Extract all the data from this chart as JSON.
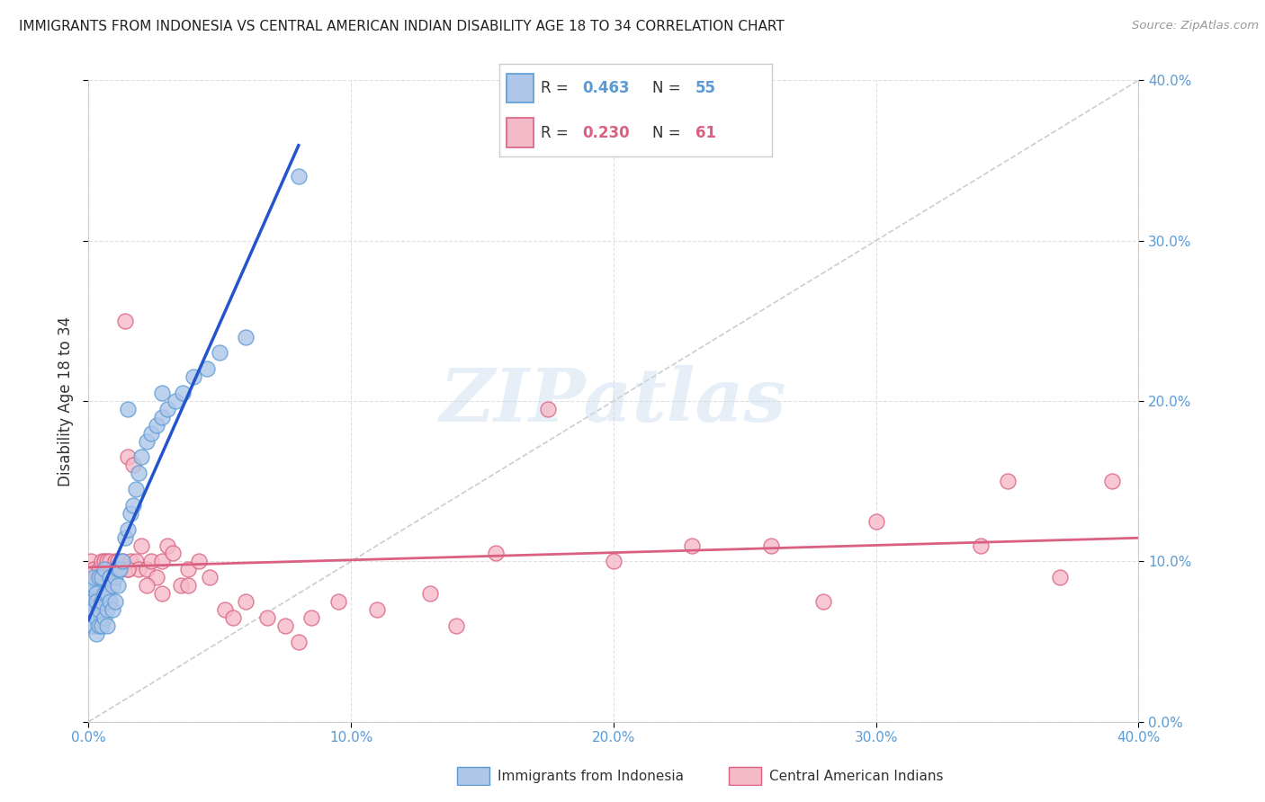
{
  "title": "IMMIGRANTS FROM INDONESIA VS CENTRAL AMERICAN INDIAN DISABILITY AGE 18 TO 34 CORRELATION CHART",
  "source": "Source: ZipAtlas.com",
  "ylabel": "Disability Age 18 to 34",
  "xlim": [
    0.0,
    0.4
  ],
  "ylim": [
    0.0,
    0.4
  ],
  "xticks": [
    0.0,
    0.1,
    0.2,
    0.3,
    0.4
  ],
  "yticks": [
    0.0,
    0.1,
    0.2,
    0.3,
    0.4
  ],
  "pct_labels": [
    "0.0%",
    "10.0%",
    "20.0%",
    "30.0%",
    "40.0%"
  ],
  "indonesia_fill": "#aec6e8",
  "indonesia_edge": "#5b9bd5",
  "central_fill": "#f5bac8",
  "central_edge": "#d96080",
  "trend_indonesia": "#2255cc",
  "trend_central": "#d96080",
  "diagonal_color": "#c0c0c0",
  "R_indonesia": 0.463,
  "N_indonesia": 55,
  "R_central": 0.23,
  "N_central": 61,
  "watermark": "ZIPatlas",
  "bg": "#ffffff",
  "grid_color": "#e0e0e0",
  "tick_color": "#5b9bd5",
  "title_color": "#222222",
  "indonesia_x": [
    0.0005,
    0.001,
    0.001,
    0.0015,
    0.002,
    0.002,
    0.002,
    0.002,
    0.003,
    0.003,
    0.003,
    0.003,
    0.004,
    0.004,
    0.004,
    0.005,
    0.005,
    0.005,
    0.006,
    0.006,
    0.006,
    0.007,
    0.007,
    0.007,
    0.008,
    0.008,
    0.009,
    0.009,
    0.01,
    0.01,
    0.011,
    0.011,
    0.012,
    0.013,
    0.014,
    0.015,
    0.016,
    0.017,
    0.018,
    0.019,
    0.02,
    0.022,
    0.024,
    0.026,
    0.028,
    0.03,
    0.033,
    0.036,
    0.04,
    0.045,
    0.05,
    0.06,
    0.08,
    0.015,
    0.028
  ],
  "indonesia_y": [
    0.08,
    0.075,
    0.065,
    0.06,
    0.085,
    0.07,
    0.06,
    0.09,
    0.08,
    0.065,
    0.075,
    0.055,
    0.09,
    0.07,
    0.06,
    0.09,
    0.075,
    0.06,
    0.08,
    0.065,
    0.095,
    0.08,
    0.07,
    0.06,
    0.09,
    0.075,
    0.085,
    0.07,
    0.09,
    0.075,
    0.095,
    0.085,
    0.095,
    0.1,
    0.115,
    0.12,
    0.13,
    0.135,
    0.145,
    0.155,
    0.165,
    0.175,
    0.18,
    0.185,
    0.19,
    0.195,
    0.2,
    0.205,
    0.215,
    0.22,
    0.23,
    0.24,
    0.34,
    0.195,
    0.205
  ],
  "central_x": [
    0.001,
    0.002,
    0.003,
    0.004,
    0.005,
    0.005,
    0.006,
    0.007,
    0.007,
    0.008,
    0.008,
    0.009,
    0.01,
    0.01,
    0.011,
    0.012,
    0.013,
    0.014,
    0.015,
    0.015,
    0.016,
    0.017,
    0.018,
    0.019,
    0.02,
    0.022,
    0.024,
    0.026,
    0.028,
    0.03,
    0.032,
    0.035,
    0.038,
    0.042,
    0.046,
    0.052,
    0.06,
    0.068,
    0.075,
    0.085,
    0.095,
    0.11,
    0.13,
    0.155,
    0.175,
    0.2,
    0.23,
    0.26,
    0.3,
    0.34,
    0.37,
    0.39,
    0.015,
    0.022,
    0.028,
    0.038,
    0.055,
    0.08,
    0.14,
    0.28,
    0.35
  ],
  "central_y": [
    0.1,
    0.095,
    0.09,
    0.095,
    0.1,
    0.09,
    0.1,
    0.095,
    0.1,
    0.095,
    0.1,
    0.095,
    0.1,
    0.095,
    0.1,
    0.095,
    0.1,
    0.25,
    0.095,
    0.165,
    0.1,
    0.16,
    0.1,
    0.095,
    0.11,
    0.095,
    0.1,
    0.09,
    0.1,
    0.11,
    0.105,
    0.085,
    0.095,
    0.1,
    0.09,
    0.07,
    0.075,
    0.065,
    0.06,
    0.065,
    0.075,
    0.07,
    0.08,
    0.105,
    0.195,
    0.1,
    0.11,
    0.11,
    0.125,
    0.11,
    0.09,
    0.15,
    0.095,
    0.085,
    0.08,
    0.085,
    0.065,
    0.05,
    0.06,
    0.075,
    0.15
  ]
}
